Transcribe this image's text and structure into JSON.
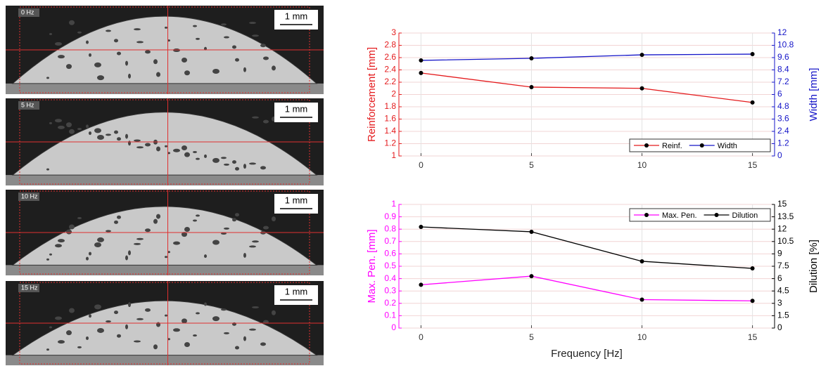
{
  "micrographs": [
    {
      "label": "0 Hz",
      "scale": "1 mm"
    },
    {
      "label": "5 Hz",
      "scale": "1 mm"
    },
    {
      "label": "10 Hz",
      "scale": "1 mm"
    },
    {
      "label": "15 Hz",
      "scale": "1 mm"
    }
  ],
  "chart_data": [
    {
      "type": "line",
      "x": [
        0,
        5,
        10,
        15
      ],
      "xlim": [
        -1,
        16
      ],
      "xticks": [
        0,
        5,
        10,
        15
      ],
      "ylabel": "Reinforcement [mm]",
      "ylim": [
        1,
        3
      ],
      "yticks": [
        1,
        1.2,
        1.4,
        1.6,
        1.8,
        2,
        2.2,
        2.4,
        2.6,
        2.8,
        3
      ],
      "y2label": "Width [mm]",
      "y2lim": [
        0,
        12
      ],
      "y2ticks": [
        0,
        1.2,
        2.4,
        3.6,
        4.8,
        6,
        7.2,
        8.4,
        9.6,
        10.8,
        12
      ],
      "grid": true,
      "legend": "lower right",
      "series": [
        {
          "name": "Reinf.",
          "color": "#e41a1c",
          "values": [
            2.35,
            2.12,
            2.1,
            1.87
          ]
        },
        {
          "name": "Width",
          "color": "#1515c8",
          "axis": "y2",
          "values": [
            9.33,
            9.53,
            9.87,
            9.94
          ]
        }
      ]
    },
    {
      "type": "line",
      "x": [
        0,
        5,
        10,
        15
      ],
      "xlim": [
        -1,
        16
      ],
      "xticks": [
        0,
        5,
        10,
        15
      ],
      "xlabel": "Frequency [Hz]",
      "ylabel": "Max. Pen. [mm]",
      "ylim": [
        0,
        1
      ],
      "yticks": [
        0,
        0.1,
        0.2,
        0.3,
        0.4,
        0.5,
        0.6,
        0.7,
        0.8,
        0.9,
        1
      ],
      "y2label": "Dilution [%]",
      "y2lim": [
        0,
        15
      ],
      "y2ticks": [
        0,
        1.5,
        3,
        4.5,
        6,
        7.5,
        9,
        10.5,
        12,
        13.5,
        15
      ],
      "grid": true,
      "legend": "upper right",
      "series": [
        {
          "name": "Max. Pen.",
          "color": "#ff00ff",
          "values": [
            0.35,
            0.42,
            0.23,
            0.22
          ]
        },
        {
          "name": "Dilution",
          "color": "#000000",
          "axis": "y2",
          "values": [
            12.27,
            11.68,
            8.1,
            7.24
          ]
        }
      ]
    }
  ]
}
